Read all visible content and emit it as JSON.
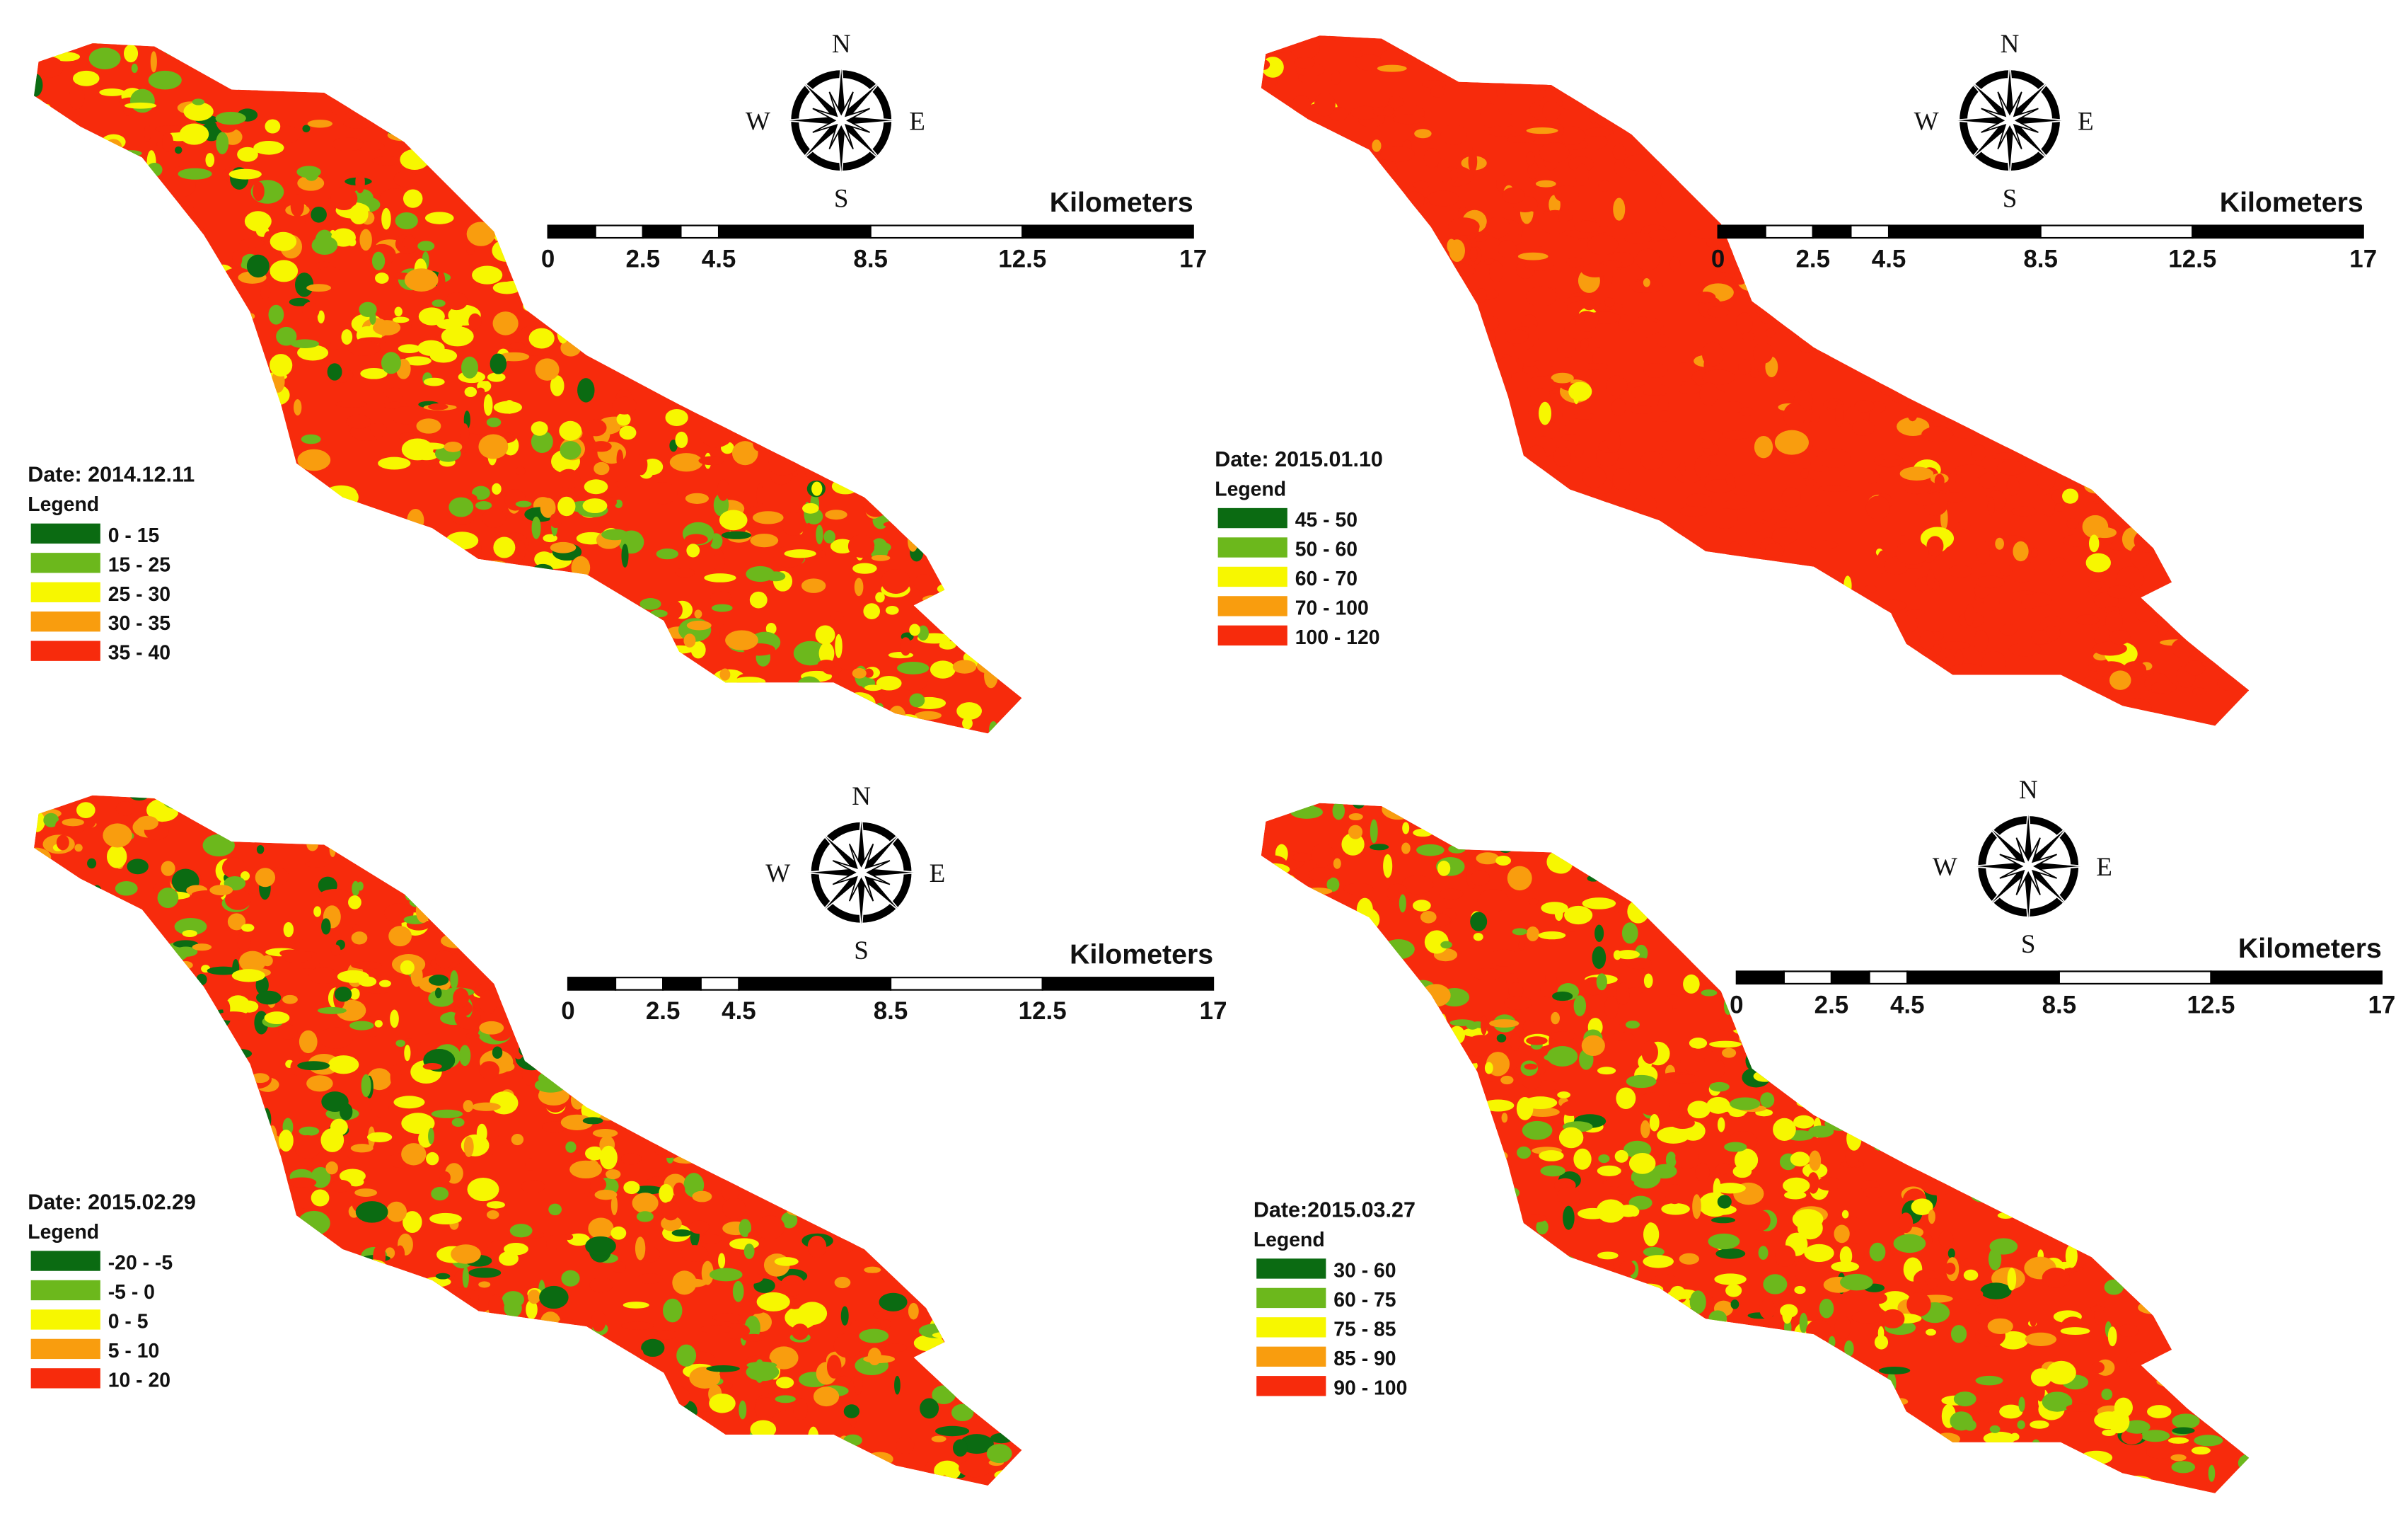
{
  "compass": {
    "north": "N",
    "south": "S",
    "east": "E",
    "west": "W"
  },
  "scale": {
    "unit": "Kilometers",
    "ticks": [
      0,
      2.5,
      4.5,
      8.5,
      12.5,
      17
    ]
  },
  "panels": [
    {
      "date": "Date: 2014.12.11",
      "legend_title": "Legend",
      "legend": [
        {
          "label": "0 - 15",
          "color": "#0b6b12"
        },
        {
          "label": "15 - 25",
          "color": "#6cb81c"
        },
        {
          "label": "25 - 30",
          "color": "#f7f700"
        },
        {
          "label": "30 - 35",
          "color": "#f99d0e"
        },
        {
          "label": "35 - 40",
          "color": "#f72b0c"
        }
      ]
    },
    {
      "date": "Date: 2015.01.10",
      "legend_title": "Legend",
      "legend": [
        {
          "label": "45 - 50",
          "color": "#0b6b12"
        },
        {
          "label": "50 - 60",
          "color": "#6cb81c"
        },
        {
          "label": "60 - 70",
          "color": "#f7f700"
        },
        {
          "label": "70 - 100",
          "color": "#f99d0e"
        },
        {
          "label": "100 - 120",
          "color": "#f72b0c"
        }
      ]
    },
    {
      "date": "Date: 2015.02.29",
      "legend_title": "Legend",
      "legend": [
        {
          "label": "-20 - -5",
          "color": "#0b6b12"
        },
        {
          "label": "-5 - 0",
          "color": "#6cb81c"
        },
        {
          "label": "0 - 5",
          "color": "#f7f700"
        },
        {
          "label": "5 - 10",
          "color": "#f99d0e"
        },
        {
          "label": "10 - 20",
          "color": "#f72b0c"
        }
      ]
    },
    {
      "date": "Date:2015.03.27",
      "legend_title": "Legend",
      "legend": [
        {
          "label": "30 - 60",
          "color": "#0b6b12"
        },
        {
          "label": "60 - 75",
          "color": "#6cb81c"
        },
        {
          "label": "75 - 85",
          "color": "#f7f700"
        },
        {
          "label": "85 - 90",
          "color": "#f99d0e"
        },
        {
          "label": "90 - 100",
          "color": "#f72b0c"
        }
      ]
    }
  ]
}
